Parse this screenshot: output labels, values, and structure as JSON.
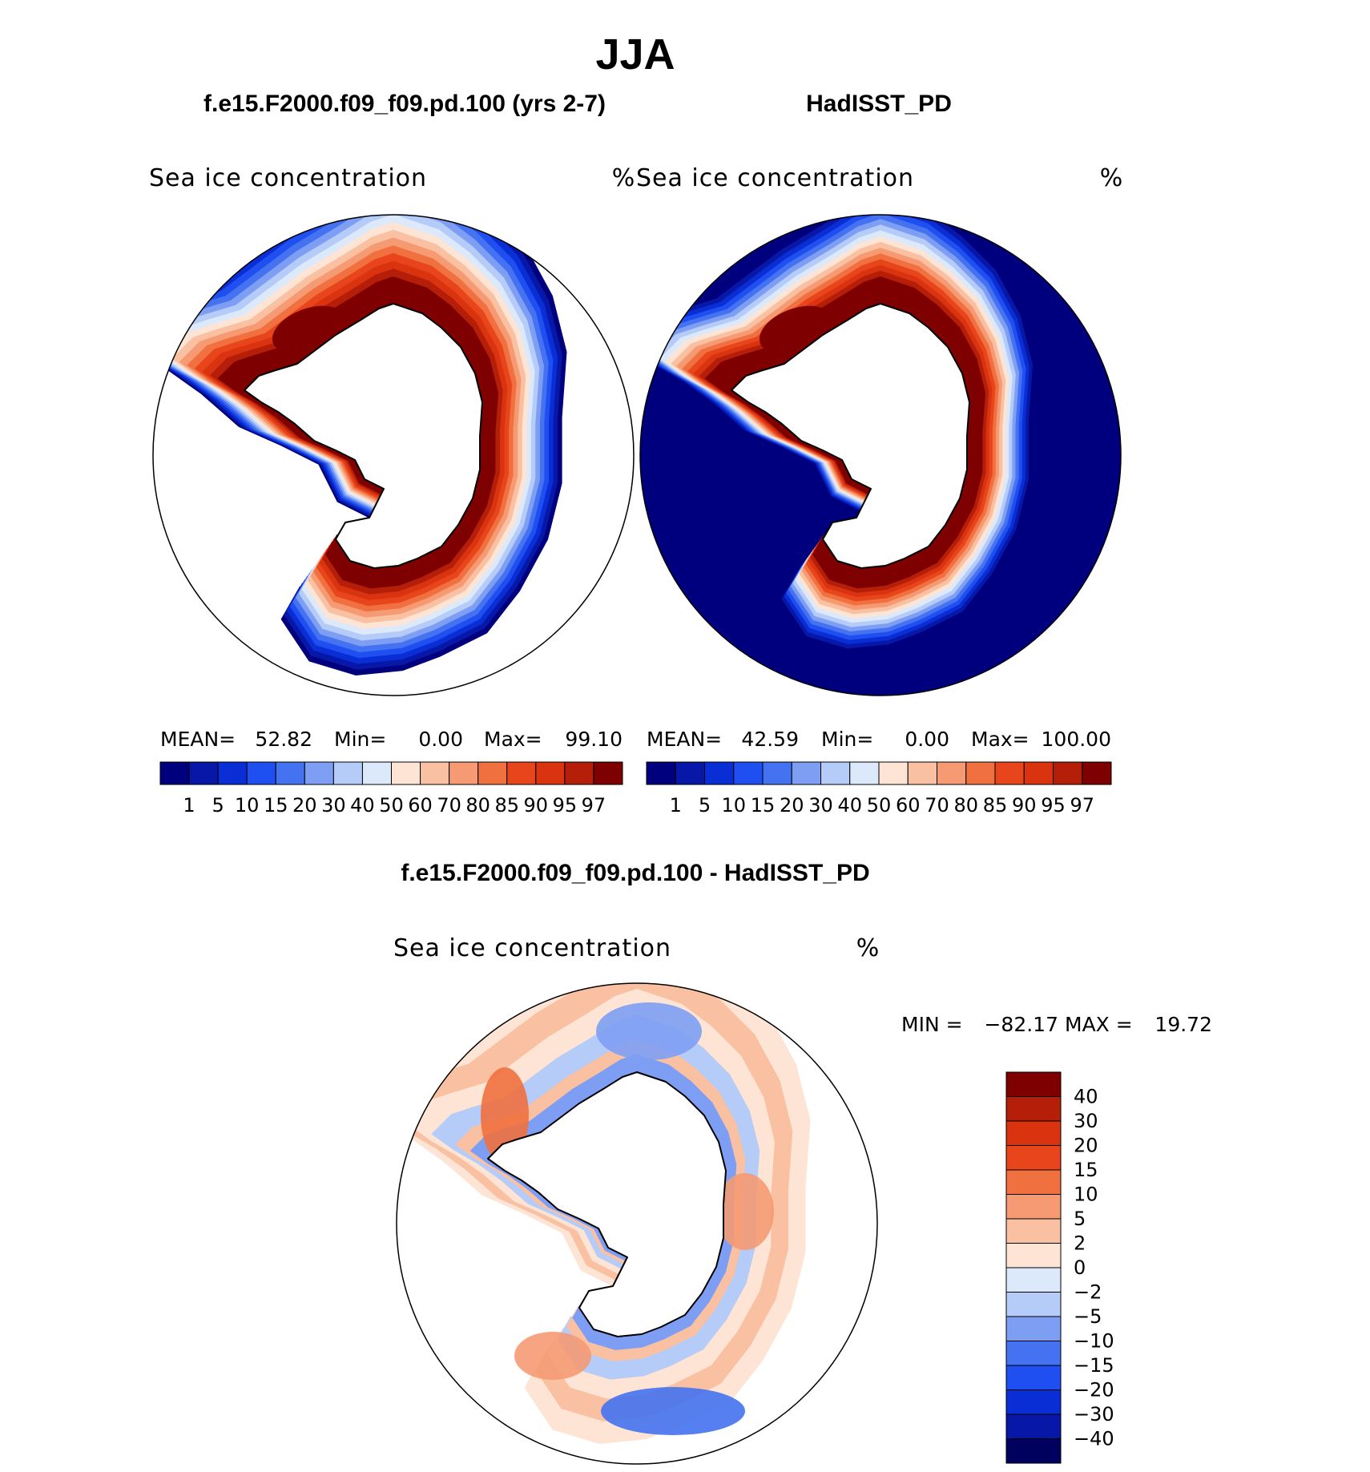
{
  "figure_title": "JJA",
  "chart_data": [
    {
      "type": "heatmap",
      "projection": "south-polar-stereographic",
      "title": "f.e15.F2000.f09_f09.pd.100 (yrs 2-7)",
      "variable": "Sea ice concentration",
      "units": "%",
      "stats": {
        "mean_label": "MEAN=",
        "mean": "52.82",
        "min_label": "Min=",
        "min": "0.00",
        "max_label": "Max=",
        "max": "99.10"
      },
      "colorbar": {
        "orientation": "horizontal",
        "levels": [
          "1",
          "5",
          "10",
          "15",
          "20",
          "30",
          "40",
          "50",
          "60",
          "70",
          "80",
          "85",
          "90",
          "95",
          "97"
        ],
        "colors": [
          "#00007f",
          "#0718a8",
          "#0a2ed6",
          "#1f4ff0",
          "#4472f0",
          "#7e9ef4",
          "#b5cbf8",
          "#dbe9fb",
          "#fde4d4",
          "#f9c0a2",
          "#f59a73",
          "#f0703f",
          "#e8451c",
          "#d93310",
          "#b51e08",
          "#7f0000"
        ]
      },
      "field": {
        "ice_edge_lat": -57,
        "ring_lat": -66,
        "peak_value": 99.1,
        "open_ocean": "undefined"
      }
    },
    {
      "type": "heatmap",
      "projection": "south-polar-stereographic",
      "title": "HadISST_PD",
      "variable": "Sea ice concentration",
      "units": "%",
      "stats": {
        "mean_label": "MEAN=",
        "mean": "42.59",
        "min_label": "Min=",
        "min": "0.00",
        "max_label": "Max=",
        "max": "100.00"
      },
      "colorbar": {
        "orientation": "horizontal",
        "levels": [
          "1",
          "5",
          "10",
          "15",
          "20",
          "30",
          "40",
          "50",
          "60",
          "70",
          "80",
          "85",
          "90",
          "95",
          "97"
        ],
        "colors": [
          "#00007f",
          "#0718a8",
          "#0a2ed6",
          "#1f4ff0",
          "#4472f0",
          "#7e9ef4",
          "#b5cbf8",
          "#dbe9fb",
          "#fde4d4",
          "#f9c0a2",
          "#f59a73",
          "#f0703f",
          "#e8451c",
          "#d93310",
          "#b51e08",
          "#7f0000"
        ]
      },
      "field": {
        "ice_edge_lat": -60,
        "ring_lat": -67,
        "peak_value": 100.0,
        "open_ocean": 0
      }
    },
    {
      "type": "heatmap",
      "projection": "south-polar-stereographic",
      "title": "f.e15.F2000.f09_f09.pd.100 - HadISST_PD",
      "variable": "Sea ice concentration",
      "units": "%",
      "stats": {
        "min_label": "MIN =",
        "min": "−82.17",
        "max_label": "MAX =",
        "max": "19.72"
      },
      "colorbar": {
        "orientation": "vertical",
        "levels": [
          "−40",
          "−30",
          "−20",
          "−15",
          "−10",
          "−5",
          "−2",
          "0",
          "2",
          "5",
          "10",
          "15",
          "20",
          "30",
          "40"
        ],
        "colors": [
          "#00005e",
          "#0718a8",
          "#0a2ed6",
          "#1f4ff0",
          "#4472f0",
          "#7e9ef4",
          "#b5cbf8",
          "#dbe9fb",
          "#fde4d4",
          "#f9c0a2",
          "#f59a73",
          "#f0703f",
          "#e8451c",
          "#d93310",
          "#b51e08",
          "#7f0000"
        ]
      }
    }
  ]
}
